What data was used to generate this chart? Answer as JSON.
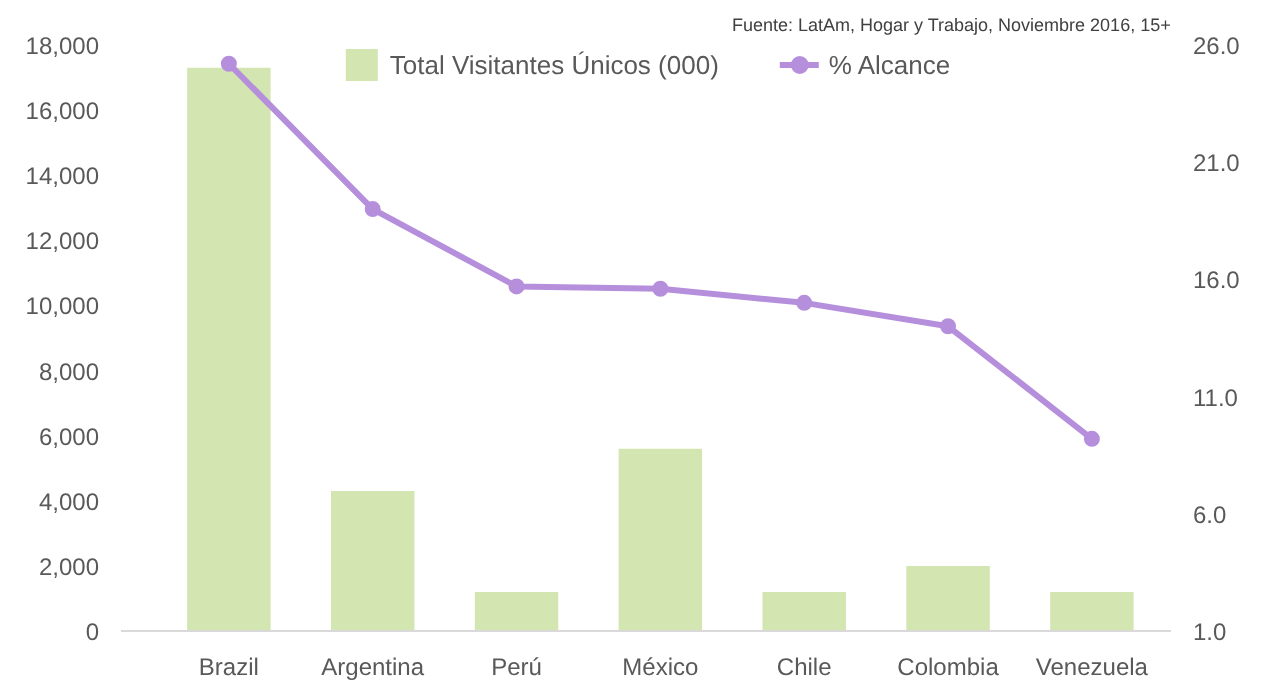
{
  "chart_data": {
    "type": "bar",
    "categories": [
      "Brazil",
      "Argentina",
      "Perú",
      "México",
      "Chile",
      "Colombia",
      "Venezuela"
    ],
    "series": [
      {
        "name": "Total Visitantes Únicos (000)",
        "color": "#d3e5b0",
        "values": [
          17300,
          4300,
          1200,
          5600,
          1200,
          2000,
          1200
        ]
      },
      {
        "name": "% Alcance",
        "type": "line",
        "axis": "y2",
        "color": "#b68fdc",
        "marker": "circle",
        "values": [
          25.2,
          19.0,
          15.7,
          15.6,
          15.0,
          14.0,
          9.2
        ]
      }
    ],
    "ylim": [
      0,
      18000
    ],
    "yticks": [
      {
        "value": 0,
        "label": "0"
      },
      {
        "value": 2000,
        "label": "2,000"
      },
      {
        "value": 4000,
        "label": "4,000"
      },
      {
        "value": 6000,
        "label": "6,000"
      },
      {
        "value": 8000,
        "label": "8,000"
      },
      {
        "value": 10000,
        "label": "10,000"
      },
      {
        "value": 12000,
        "label": "12,000"
      },
      {
        "value": 14000,
        "label": "14,000"
      },
      {
        "value": 16000,
        "label": "16,000"
      },
      {
        "value": 18000,
        "label": "18,000"
      }
    ],
    "y2lim": [
      1,
      26
    ],
    "y2ticks": [
      {
        "value": 1,
        "label": "1.0"
      },
      {
        "value": 6,
        "label": "6.0"
      },
      {
        "value": 11,
        "label": "11.0"
      },
      {
        "value": 16,
        "label": "16.0"
      },
      {
        "value": 21,
        "label": "21.0"
      },
      {
        "value": 26,
        "label": "26.0"
      }
    ],
    "grid": false,
    "legend": "top",
    "annotations": [
      "Fuente: LatAm, Hogar y Trabajo, Noviembre 2016, 15+"
    ]
  }
}
